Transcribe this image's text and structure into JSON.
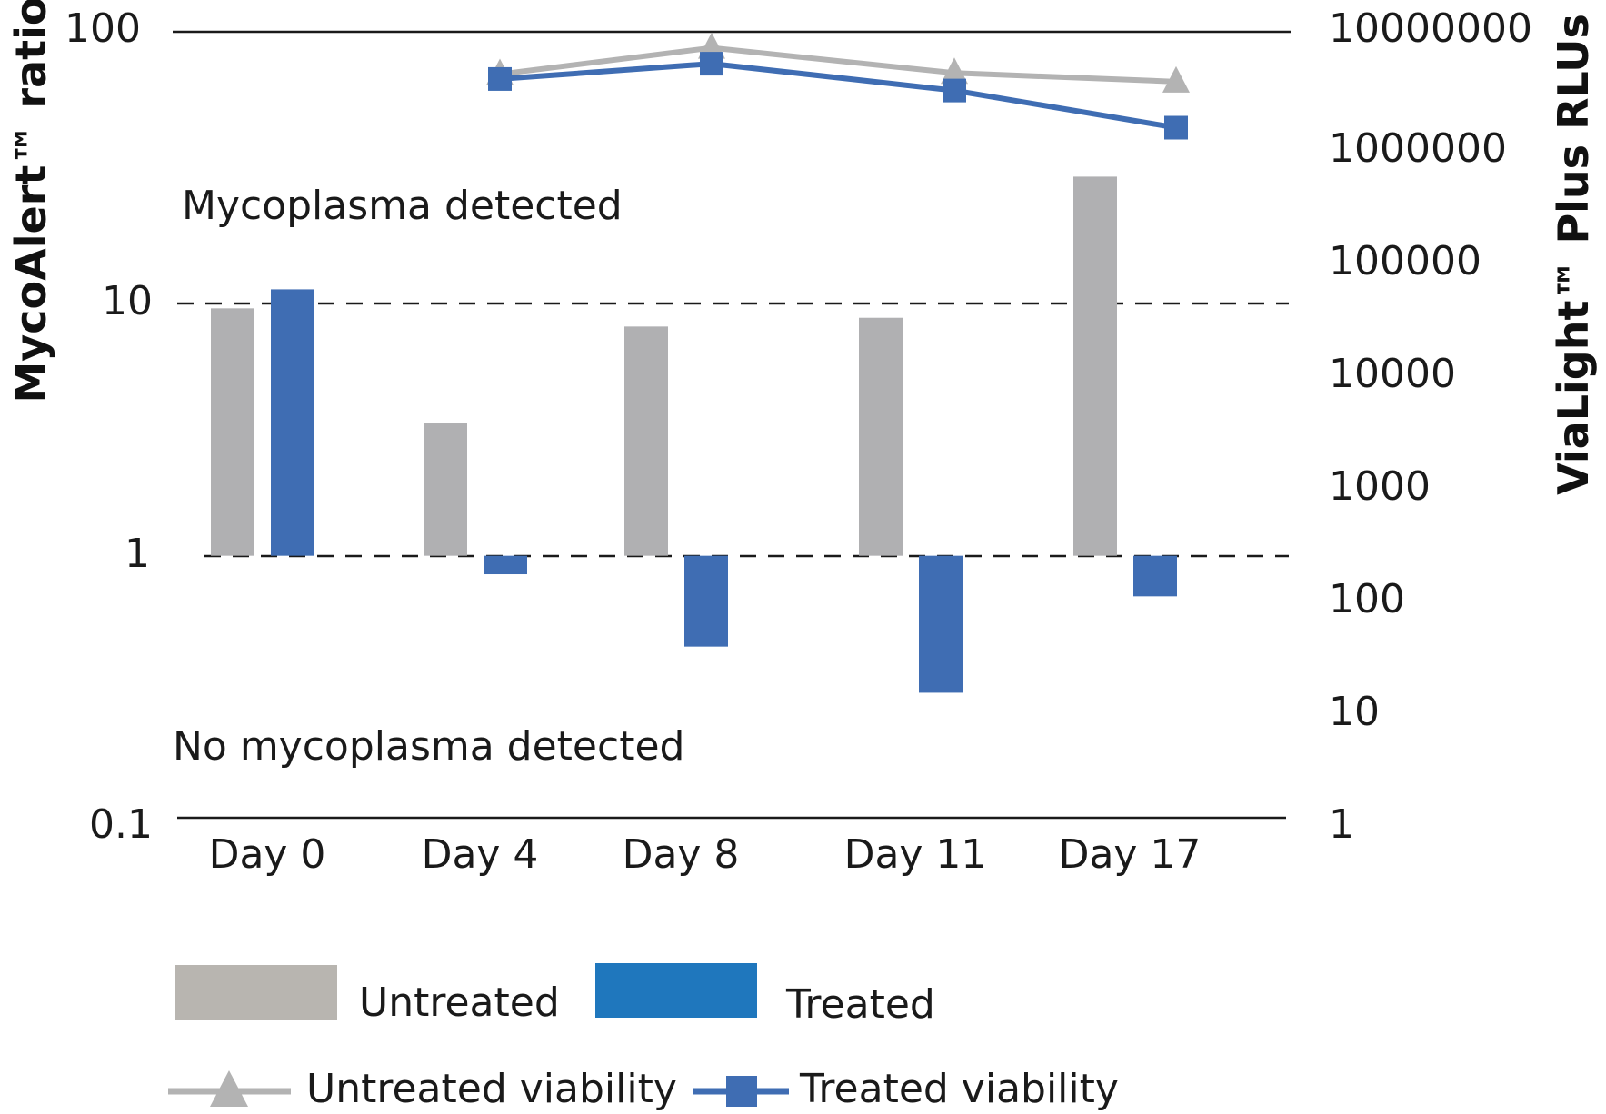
{
  "chart_data": {
    "type": "bar",
    "categories": [
      "Day 0",
      "Day 4",
      "Day 8",
      "Day 11",
      "Day 17"
    ],
    "left_axis": {
      "title": "MycoAlert™ ratio",
      "scale": "log",
      "ylim": [
        0.1,
        100
      ],
      "ticks": [
        "100",
        "10",
        "1",
        "0.1"
      ],
      "tick_values": [
        100,
        10,
        1,
        0.1
      ]
    },
    "right_axis": {
      "title": "ViaLight™ Plus RLUs",
      "scale": "log",
      "ylim": [
        1,
        10000000
      ],
      "ticks": [
        "10000000",
        "1000000",
        "100000",
        "10000",
        "1000",
        "100",
        "10",
        "1"
      ],
      "tick_values": [
        10000000,
        1000000,
        100000,
        10000,
        1000,
        100,
        10,
        1
      ]
    },
    "bar_series": [
      {
        "name": "Untreated",
        "color": "#b0b0b2",
        "values": [
          8.8,
          3.2,
          7.5,
          8.1,
          28
        ]
      },
      {
        "name": "Treated",
        "color": "#3f6db3",
        "values": [
          10.4,
          0.85,
          0.45,
          0.3,
          0.7
        ]
      }
    ],
    "line_series": [
      {
        "name": "Untreated viability",
        "color": "#b3b3b3",
        "marker": "triangle",
        "axis": "right",
        "x_index": [
          1,
          2,
          3,
          4
        ],
        "values": [
          4200000,
          7200000,
          4300000,
          3600000
        ]
      },
      {
        "name": "Treated viability",
        "color": "#3f6db3",
        "marker": "square",
        "axis": "right",
        "x_index": [
          1,
          2,
          3,
          4
        ],
        "values": [
          3800000,
          5200000,
          3000000,
          1400000
        ]
      }
    ],
    "threshold_lines": [
      10,
      1
    ],
    "annotations": [
      "Mycoplasma detected",
      "No mycoplasma detected"
    ],
    "legend": {
      "bars": [
        {
          "label": "Untreated",
          "color": "#b8b5b0"
        },
        {
          "label": "Treated",
          "color": "#1f77bd"
        }
      ],
      "lines": [
        {
          "label": "Untreated viability",
          "color": "#b3b3b3",
          "marker": "triangle"
        },
        {
          "label": "Treated viability",
          "color": "#3f6db3",
          "marker": "square"
        }
      ]
    }
  }
}
